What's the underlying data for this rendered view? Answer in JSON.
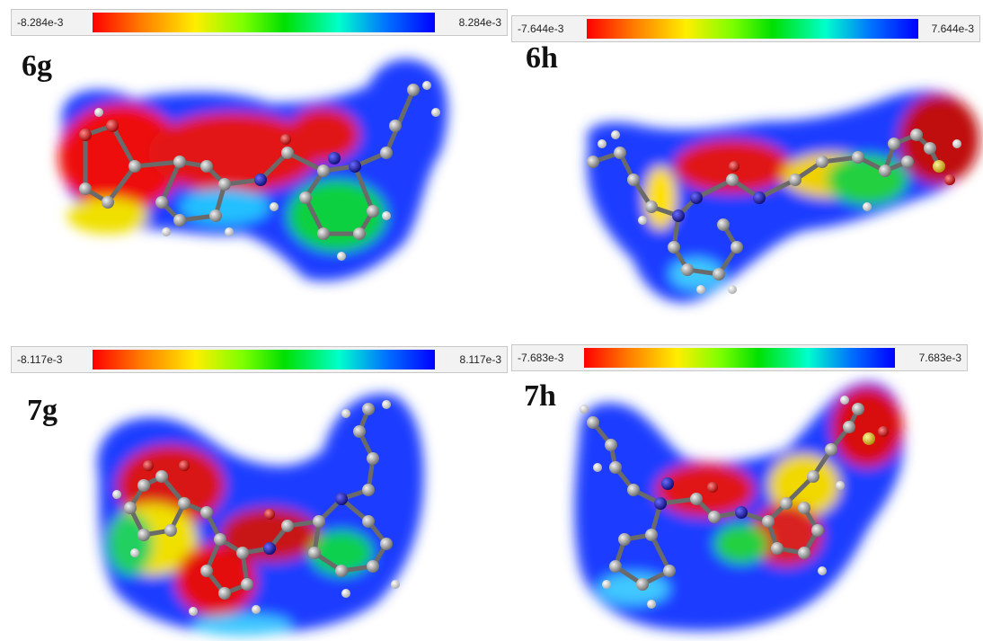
{
  "panels": [
    {
      "id": "6g",
      "label": "6g",
      "scale_min": "-8.284e-3",
      "scale_max": "8.284e-3"
    },
    {
      "id": "6h",
      "label": "6h",
      "scale_min": "-7.644e-3",
      "scale_max": "7.644e-3"
    },
    {
      "id": "7g",
      "label": "7g",
      "scale_min": "-8.117e-3",
      "scale_max": "8.117e-3"
    },
    {
      "id": "7h",
      "label": "7h",
      "scale_min": "-7.683e-3",
      "scale_max": "7.683e-3"
    }
  ],
  "colors": {
    "negative": "#ff0000",
    "neutral": "#00e000",
    "positive": "#0000ff",
    "atom_carbon": "#9a9a9a",
    "atom_nitrogen": "#1a1aa0",
    "atom_oxygen": "#d40000",
    "atom_sulfur": "#e6c000"
  }
}
